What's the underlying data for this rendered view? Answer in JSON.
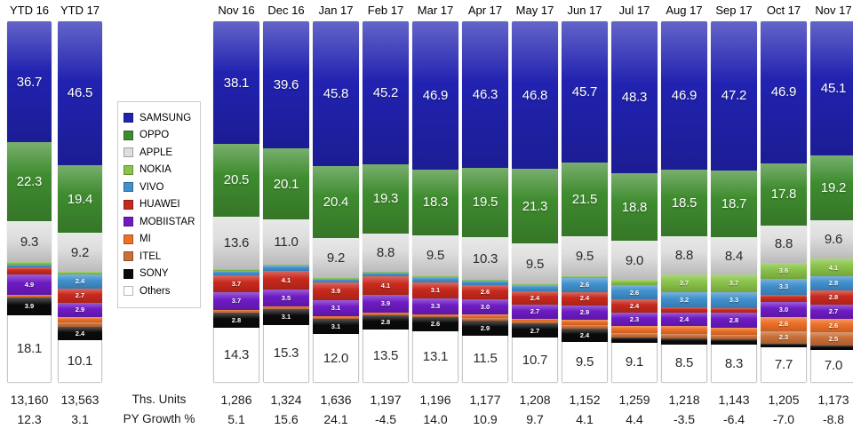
{
  "chart_data": {
    "type": "bar",
    "subtype": "100-percent-stacked-columns",
    "title": "",
    "legend_position": "inset-left-between-ytd-and-months",
    "series_order": [
      "SAMSUNG",
      "OPPO",
      "APPLE",
      "NOKIA",
      "VIVO",
      "HUAWEI",
      "MOBIISTAR",
      "MI",
      "ITEL",
      "SONY",
      "Others"
    ],
    "series_colors": {
      "SAMSUNG": "#2122B0",
      "OPPO": "#3F8C2F",
      "APPLE": "#DEDEDE",
      "NOKIA": "#8AC349",
      "VIVO": "#4191CE",
      "HUAWEI": "#C9291D",
      "MOBIISTAR": "#6E1BC4",
      "MI": "#ED7027",
      "ITEL": "#C96F38",
      "SONY": "#0A0A0A",
      "Others": "#FFFFFF"
    },
    "footer_labels": {
      "units": "Ths. Units",
      "growth": "PY Growth %"
    },
    "columns": [
      {
        "label": "YTD 16",
        "group": "ytd",
        "units": "13,160",
        "growth": "12.3",
        "values": [
          36.7,
          22.3,
          9.3,
          1.0,
          0.9,
          2.2,
          4.9,
          0.4,
          0.3,
          3.9,
          18.1
        ],
        "labels": [
          "36.7",
          "22.3",
          "9.3",
          "",
          "",
          "",
          "4.9",
          "",
          "",
          "3.9",
          "18.1"
        ]
      },
      {
        "label": "YTD 17",
        "group": "ytd",
        "units": "13,563",
        "growth": "3.1",
        "values": [
          46.5,
          19.4,
          9.2,
          1.0,
          2.4,
          2.7,
          2.9,
          1.9,
          1.5,
          2.4,
          10.1
        ],
        "labels": [
          "46.5",
          "19.4",
          "9.2",
          "",
          "2.4",
          "2.7",
          "2.9",
          "",
          "",
          "2.4",
          "10.1"
        ]
      },
      {
        "label": "Nov 16",
        "group": "month",
        "units": "1,286",
        "growth": "5.1",
        "values": [
          38.1,
          20.5,
          13.6,
          0.7,
          1.6,
          3.7,
          3.7,
          0.6,
          0.4,
          2.8,
          14.3
        ],
        "labels": [
          "38.1",
          "20.5",
          "13.6",
          "",
          "",
          "3.7",
          "3.7",
          "",
          "",
          "2.8",
          "14.3"
        ]
      },
      {
        "label": "Dec 16",
        "group": "month",
        "units": "1,324",
        "growth": "15.6",
        "values": [
          39.6,
          20.1,
          11.0,
          0.5,
          1.8,
          4.1,
          3.5,
          0.6,
          0.4,
          3.1,
          15.3
        ],
        "labels": [
          "39.6",
          "20.1",
          "11.0",
          "",
          "",
          "4.1",
          "3.5",
          "",
          "",
          "3.1",
          "15.3"
        ]
      },
      {
        "label": "Jan 17",
        "group": "month",
        "units": "1,636",
        "growth": "24.1",
        "values": [
          45.8,
          20.4,
          9.2,
          0.3,
          1.3,
          3.9,
          3.1,
          0.5,
          0.4,
          3.1,
          12.0
        ],
        "labels": [
          "45.8",
          "20.4",
          "9.2",
          "",
          "",
          "3.9",
          "3.1",
          "",
          "",
          "3.1",
          "12.0"
        ]
      },
      {
        "label": "Feb 17",
        "group": "month",
        "units": "1,197",
        "growth": "-4.5",
        "values": [
          45.2,
          19.3,
          8.8,
          0.4,
          1.2,
          4.1,
          3.9,
          0.5,
          0.3,
          2.8,
          13.5
        ],
        "labels": [
          "45.2",
          "19.3",
          "8.8",
          "",
          "",
          "4.1",
          "3.9",
          "",
          "",
          "2.8",
          "13.5"
        ]
      },
      {
        "label": "Mar 17",
        "group": "month",
        "units": "1,196",
        "growth": "14.0",
        "values": [
          46.9,
          18.3,
          9.5,
          0.4,
          1.9,
          3.1,
          3.3,
          0.5,
          0.4,
          2.6,
          13.1
        ],
        "labels": [
          "46.9",
          "18.3",
          "9.5",
          "",
          "",
          "3.1",
          "3.3",
          "",
          "",
          "2.6",
          "13.1"
        ]
      },
      {
        "label": "Apr 17",
        "group": "month",
        "units": "1,177",
        "growth": "10.9",
        "values": [
          46.3,
          19.5,
          10.3,
          0.4,
          1.4,
          2.6,
          3.0,
          1.3,
          0.8,
          2.9,
          11.5
        ],
        "labels": [
          "46.3",
          "19.5",
          "10.3",
          "",
          "",
          "2.6",
          "3.0",
          "",
          "",
          "2.9",
          "11.5"
        ]
      },
      {
        "label": "May 17",
        "group": "month",
        "units": "1,208",
        "growth": "9.7",
        "values": [
          46.8,
          21.3,
          9.5,
          0.4,
          2.0,
          2.4,
          2.7,
          0.9,
          0.6,
          2.7,
          10.7
        ],
        "labels": [
          "46.8",
          "21.3",
          "9.5",
          "",
          "",
          "2.4",
          "2.7",
          "",
          "",
          "2.7",
          "10.7"
        ]
      },
      {
        "label": "Jun 17",
        "group": "month",
        "units": "1,152",
        "growth": "4.1",
        "values": [
          45.7,
          21.5,
          9.5,
          0.5,
          2.6,
          2.4,
          2.9,
          1.7,
          1.3,
          2.4,
          9.5
        ],
        "labels": [
          "45.7",
          "21.5",
          "9.5",
          "",
          "2.6",
          "2.4",
          "2.9",
          "",
          "",
          "2.4",
          "9.5"
        ]
      },
      {
        "label": "Jul 17",
        "group": "month",
        "units": "1,259",
        "growth": "4.4",
        "values": [
          48.3,
          18.8,
          9.0,
          1.9,
          2.6,
          2.4,
          2.3,
          2.2,
          1.6,
          1.8,
          9.1
        ],
        "labels": [
          "48.3",
          "18.8",
          "9.0",
          "",
          "2.6",
          "2.4",
          "2.3",
          "",
          "",
          "",
          "9.1"
        ]
      },
      {
        "label": "Aug 17",
        "group": "month",
        "units": "1,218",
        "growth": "-3.5",
        "values": [
          46.9,
          18.5,
          8.8,
          3.7,
          3.2,
          1.7,
          2.4,
          2.7,
          1.7,
          1.9,
          8.5
        ],
        "labels": [
          "46.9",
          "18.5",
          "8.8",
          "3.7",
          "3.2",
          "",
          "2.4",
          "",
          "",
          "",
          "8.5"
        ]
      },
      {
        "label": "Sep 17",
        "group": "month",
        "units": "1,143",
        "growth": "-6.4",
        "values": [
          47.2,
          18.7,
          8.4,
          3.7,
          3.3,
          1.6,
          2.8,
          2.7,
          1.5,
          1.8,
          8.3
        ],
        "labels": [
          "47.2",
          "18.7",
          "8.4",
          "3.7",
          "3.3",
          "",
          "2.8",
          "",
          "",
          "",
          "8.3"
        ]
      },
      {
        "label": "Oct 17",
        "group": "month",
        "units": "1,205",
        "growth": "-7.0",
        "values": [
          46.9,
          17.8,
          8.8,
          3.6,
          3.3,
          2.7,
          3.0,
          2.6,
          2.3,
          1.3,
          7.7
        ],
        "labels": [
          "46.9",
          "17.8",
          "8.8",
          "3.6",
          "3.3",
          "",
          "3.0",
          "2.6",
          "2.3",
          "",
          "7.7"
        ]
      },
      {
        "label": "Nov 17",
        "group": "month",
        "units": "1,173",
        "growth": "-8.8",
        "values": [
          45.1,
          19.2,
          9.6,
          4.1,
          2.8,
          2.8,
          2.7,
          2.6,
          2.5,
          1.6,
          7.0
        ],
        "labels": [
          "45.1",
          "19.2",
          "9.6",
          "4.1",
          "2.8",
          "2.8",
          "2.7",
          "2.6",
          "2.5",
          "",
          "7.0"
        ]
      }
    ]
  }
}
